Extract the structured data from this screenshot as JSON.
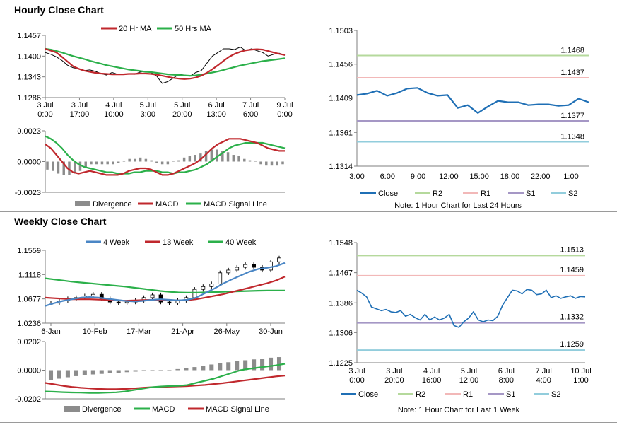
{
  "hourly": {
    "title": "Hourly Close Chart",
    "price": {
      "legend": [
        "20 Hr MA",
        "50 Hrs MA"
      ],
      "y_ticks": [
        "1.1457",
        "1.1400",
        "1.1343",
        "1.1286"
      ],
      "ylim": [
        1.1286,
        1.1457
      ],
      "x_ticks": [
        [
          "3 Jul",
          "0:00"
        ],
        [
          "3 Jul",
          "17:00"
        ],
        [
          "4 Jul",
          "10:00"
        ],
        [
          "5 Jul",
          "3:00"
        ],
        [
          "5 Jul",
          "20:00"
        ],
        [
          "6 Jul",
          "13:00"
        ],
        [
          "7 Jul",
          "6:00"
        ],
        [
          "9 Jul",
          "0:00"
        ]
      ],
      "close": [
        1.141,
        1.1405,
        1.1398,
        1.1388,
        1.1375,
        1.1368,
        1.1365,
        1.136,
        1.1362,
        1.1358,
        1.1352,
        1.1348,
        1.1355,
        1.135,
        1.135,
        1.1352,
        1.135,
        1.1356,
        1.1358,
        1.1355,
        1.1345,
        1.1325,
        1.133,
        1.134,
        1.135,
        1.1348,
        1.1345,
        1.1355,
        1.136,
        1.138,
        1.14,
        1.141,
        1.142,
        1.142,
        1.1418,
        1.1425,
        1.1415,
        1.142,
        1.1415,
        1.141,
        1.14,
        1.1405,
        1.1408,
        1.1402
      ],
      "ma20": [
        1.142,
        1.1415,
        1.141,
        1.1398,
        1.1385,
        1.1372,
        1.1365,
        1.136,
        1.1357,
        1.1354,
        1.1352,
        1.1351,
        1.135,
        1.135,
        1.135,
        1.1351,
        1.1351,
        1.1352,
        1.1352,
        1.1351,
        1.1349,
        1.1346,
        1.1343,
        1.134,
        1.1338,
        1.1337,
        1.1338,
        1.1341,
        1.1346,
        1.1354,
        1.1364,
        1.1375,
        1.1387,
        1.1398,
        1.1406,
        1.1412,
        1.1416,
        1.1418,
        1.1419,
        1.1418,
        1.1414,
        1.141,
        1.1406,
        1.1403
      ],
      "ma50": [
        1.142,
        1.1418,
        1.1414,
        1.141,
        1.1405,
        1.14,
        1.1396,
        1.1392,
        1.1387,
        1.1383,
        1.1379,
        1.1375,
        1.1372,
        1.1369,
        1.1366,
        1.1363,
        1.1361,
        1.1359,
        1.1357,
        1.1356,
        1.1354,
        1.1352,
        1.135,
        1.1349,
        1.1348,
        1.1347,
        1.1346,
        1.1347,
        1.1349,
        1.1352,
        1.1355,
        1.1358,
        1.1362,
        1.1366,
        1.137,
        1.1374,
        1.1377,
        1.138,
        1.1383,
        1.1386,
        1.1388,
        1.139,
        1.1392,
        1.1394
      ],
      "colors": {
        "ma20": "#c0282d",
        "ma50": "#2bb04a",
        "close": "#000000"
      }
    },
    "macd": {
      "y_ticks": [
        "0.0023",
        "0.0000",
        "-0.0023"
      ],
      "ylim": [
        -0.0023,
        0.0023
      ],
      "legend": [
        "Divergence",
        "MACD",
        "MACD Signal Line"
      ],
      "macd": [
        0.0013,
        0.001,
        0.0005,
        0.0,
        -0.0005,
        -0.0008,
        -0.0009,
        -0.0008,
        -0.0007,
        -0.0008,
        -0.0009,
        -0.001,
        -0.001,
        -0.001,
        -0.0009,
        -0.0007,
        -0.0006,
        -0.0005,
        -0.0005,
        -0.0006,
        -0.0008,
        -0.001,
        -0.001,
        -0.0009,
        -0.0007,
        -0.0005,
        -0.0003,
        -0.0001,
        0.0002,
        0.0006,
        0.001,
        0.0013,
        0.0015,
        0.0017,
        0.0017,
        0.0017,
        0.0016,
        0.0015,
        0.0014,
        0.0012,
        0.001,
        0.0009,
        0.0008,
        0.0008
      ],
      "signal": [
        0.0019,
        0.0017,
        0.0014,
        0.001,
        0.0005,
        0.0001,
        -0.0002,
        -0.0004,
        -0.0005,
        -0.0006,
        -0.0007,
        -0.0008,
        -0.0008,
        -0.0009,
        -0.0009,
        -0.0009,
        -0.0008,
        -0.0008,
        -0.0007,
        -0.0007,
        -0.0007,
        -0.0008,
        -0.0008,
        -0.0009,
        -0.0008,
        -0.0008,
        -0.0007,
        -0.0006,
        -0.0004,
        -0.0002,
        0.0001,
        0.0004,
        0.0007,
        0.001,
        0.0012,
        0.0013,
        0.0014,
        0.0014,
        0.0014,
        0.0014,
        0.0013,
        0.0012,
        0.0011,
        0.001
      ],
      "divergence": [
        -0.0006,
        -0.0007,
        -0.0009,
        -0.001,
        -0.001,
        -0.0009,
        -0.0007,
        -0.0004,
        -0.0002,
        -0.0002,
        -0.0002,
        -0.0002,
        -0.0002,
        -0.0001,
        0.0,
        0.0002,
        0.0002,
        0.0003,
        0.0002,
        0.0001,
        -0.0001,
        -0.0002,
        -0.0002,
        0.0,
        0.0001,
        0.0003,
        0.0004,
        0.0005,
        0.0006,
        0.0008,
        0.0009,
        0.0009,
        0.0008,
        0.0007,
        0.0005,
        0.0004,
        0.0002,
        0.0001,
        0.0,
        -0.0002,
        -0.0003,
        -0.0003,
        -0.0003,
        -0.0002
      ],
      "colors": {
        "divergence": "#8c8c8c",
        "macd": "#c0282d",
        "signal": "#2bb04a"
      }
    },
    "levels": {
      "y_ticks": [
        "1.1503",
        "1.1456",
        "1.1409",
        "1.1361",
        "1.1314"
      ],
      "ylim": [
        1.1314,
        1.1503
      ],
      "x_ticks": [
        "3:00",
        "6:00",
        "9:00",
        "12:00",
        "15:00",
        "18:00",
        "22:00",
        "1:00"
      ],
      "legend": [
        "Close",
        "R2",
        "R1",
        "S1",
        "S2"
      ],
      "note": "Note: 1 Hour Chart for Last 24 Hours",
      "lines": [
        {
          "name": "R2",
          "value": 1.1468,
          "label": "1.1468",
          "color": "#b5d99c"
        },
        {
          "name": "R1",
          "value": 1.1437,
          "label": "1.1437",
          "color": "#f2b8b8"
        },
        {
          "name": "S1",
          "value": 1.1377,
          "label": "1.1377",
          "color": "#a597c5"
        },
        {
          "name": "S2",
          "value": 1.1348,
          "label": "1.1348",
          "color": "#92cddc"
        }
      ],
      "close": [
        1.1413,
        1.1415,
        1.1419,
        1.1412,
        1.1416,
        1.1422,
        1.1423,
        1.1416,
        1.1412,
        1.1413,
        1.1395,
        1.1399,
        1.1388,
        1.1397,
        1.1405,
        1.1403,
        1.1403,
        1.1399,
        1.14,
        1.14,
        1.1398,
        1.1399,
        1.1408,
        1.1403
      ],
      "close_color": "#1f6fb5"
    }
  },
  "weekly": {
    "title": "Weekly Close Chart",
    "price": {
      "legend": [
        "4 Week",
        "13 Week",
        "40 Week"
      ],
      "y_ticks": [
        "1.1559",
        "1.1118",
        "1.0677",
        "1.0236"
      ],
      "ylim": [
        1.0236,
        1.1559
      ],
      "x_ticks": [
        "6-Jan",
        "10-Feb",
        "17-Mar",
        "21-Apr",
        "26-May",
        "30-Jun"
      ],
      "close": [
        1.06,
        1.064,
        1.068,
        1.07,
        1.073,
        1.076,
        1.068,
        1.062,
        1.06,
        1.062,
        1.065,
        1.07,
        1.075,
        1.062,
        1.06,
        1.065,
        1.07,
        1.085,
        1.09,
        1.095,
        1.115,
        1.12,
        1.125,
        1.13,
        1.125,
        1.12,
        1.135,
        1.142
      ],
      "w4": [
        1.055,
        1.06,
        1.064,
        1.067,
        1.07,
        1.071,
        1.07,
        1.068,
        1.066,
        1.064,
        1.063,
        1.064,
        1.066,
        1.067,
        1.066,
        1.065,
        1.066,
        1.07,
        1.078,
        1.086,
        1.095,
        1.103,
        1.11,
        1.117,
        1.122,
        1.124,
        1.127,
        1.133
      ],
      "w13": [
        1.07,
        1.069,
        1.068,
        1.067,
        1.067,
        1.067,
        1.0665,
        1.066,
        1.065,
        1.0645,
        1.065,
        1.0655,
        1.066,
        1.066,
        1.0655,
        1.065,
        1.0655,
        1.067,
        1.07,
        1.073,
        1.076,
        1.08,
        1.084,
        1.088,
        1.092,
        1.096,
        1.101,
        1.108
      ],
      "w40": [
        1.105,
        1.103,
        1.101,
        1.099,
        1.0975,
        1.096,
        1.0945,
        1.093,
        1.0915,
        1.09,
        1.088,
        1.086,
        1.084,
        1.082,
        1.0805,
        1.0795,
        1.079,
        1.079,
        1.0795,
        1.08,
        1.0805,
        1.081,
        1.0815,
        1.082,
        1.0825,
        1.0828,
        1.083,
        1.083
      ],
      "colors": {
        "w4": "#4a86c5",
        "w13": "#c0282d",
        "w40": "#2bb04a",
        "close": "#000000"
      }
    },
    "macd": {
      "y_ticks": [
        "0.0202",
        "0.0000",
        "-0.0202"
      ],
      "ylim": [
        -0.0202,
        0.0202
      ],
      "legend": [
        "Divergence",
        "MACD",
        "MACD Signal Line"
      ],
      "divergence": [
        -0.007,
        -0.006,
        -0.005,
        -0.0042,
        -0.0036,
        -0.003,
        -0.0026,
        -0.0022,
        -0.0018,
        -0.0014,
        -0.001,
        -0.0006,
        -0.0004,
        -0.0002,
        0.0002,
        0.0008,
        0.0014,
        0.0022,
        0.003,
        0.004,
        0.0048,
        0.0056,
        0.0064,
        0.007,
        0.0076,
        0.0082,
        0.0088,
        0.0092
      ],
      "macd": [
        -0.015,
        -0.0152,
        -0.0155,
        -0.0157,
        -0.0158,
        -0.016,
        -0.016,
        -0.0158,
        -0.0156,
        -0.015,
        -0.014,
        -0.013,
        -0.012,
        -0.0115,
        -0.0112,
        -0.011,
        -0.0105,
        -0.009,
        -0.0075,
        -0.006,
        -0.004,
        -0.002,
        0.0,
        0.001,
        0.0018,
        0.0026,
        0.0034,
        0.0045
      ],
      "signal": [
        -0.009,
        -0.01,
        -0.011,
        -0.0118,
        -0.0124,
        -0.0128,
        -0.0132,
        -0.0134,
        -0.0134,
        -0.0132,
        -0.0128,
        -0.0124,
        -0.012,
        -0.0118,
        -0.0116,
        -0.0114,
        -0.0112,
        -0.0108,
        -0.0104,
        -0.0098,
        -0.0092,
        -0.0084,
        -0.0076,
        -0.0068,
        -0.006,
        -0.0052,
        -0.0044,
        -0.0038
      ],
      "colors": {
        "divergence": "#8c8c8c",
        "macd": "#2bb04a",
        "signal": "#c0282d"
      }
    },
    "levels": {
      "y_ticks": [
        "1.1548",
        "1.1467",
        "1.1386",
        "1.1306",
        "1.1225"
      ],
      "ylim": [
        1.1225,
        1.1548
      ],
      "x_ticks": [
        [
          "3 Jul",
          "0:00"
        ],
        [
          "3 Jul",
          "20:00"
        ],
        [
          "4 Jul",
          "16:00"
        ],
        [
          "5 Jul",
          "12:00"
        ],
        [
          "6 Jul",
          "8:00"
        ],
        [
          "7 Jul",
          "4:00"
        ],
        [
          "10 Jul",
          "1:00"
        ]
      ],
      "legend": [
        "Close",
        "R2",
        "R1",
        "S1",
        "S2"
      ],
      "note": "Note: 1 Hour Chart for Last 1 Week",
      "lines": [
        {
          "name": "R2",
          "value": 1.1513,
          "label": "1.1513",
          "color": "#b5d99c"
        },
        {
          "name": "R1",
          "value": 1.1459,
          "label": "1.1459",
          "color": "#f2b8b8"
        },
        {
          "name": "S1",
          "value": 1.1332,
          "label": "1.1332",
          "color": "#a597c5"
        },
        {
          "name": "S2",
          "value": 1.1259,
          "label": "1.1259",
          "color": "#92cddc"
        }
      ],
      "close": [
        1.142,
        1.1412,
        1.1402,
        1.1375,
        1.137,
        1.1365,
        1.1368,
        1.1362,
        1.136,
        1.1365,
        1.135,
        1.1355,
        1.1346,
        1.134,
        1.1355,
        1.134,
        1.1348,
        1.134,
        1.1345,
        1.1355,
        1.1325,
        1.132,
        1.1335,
        1.1345,
        1.1362,
        1.134,
        1.1335,
        1.134,
        1.1338,
        1.135,
        1.138,
        1.14,
        1.142,
        1.1418,
        1.141,
        1.1422,
        1.142,
        1.1408,
        1.141,
        1.142,
        1.14,
        1.1405,
        1.1398,
        1.1402,
        1.1405,
        1.1398,
        1.1403,
        1.1402
      ],
      "close_color": "#1f6fb5"
    }
  }
}
